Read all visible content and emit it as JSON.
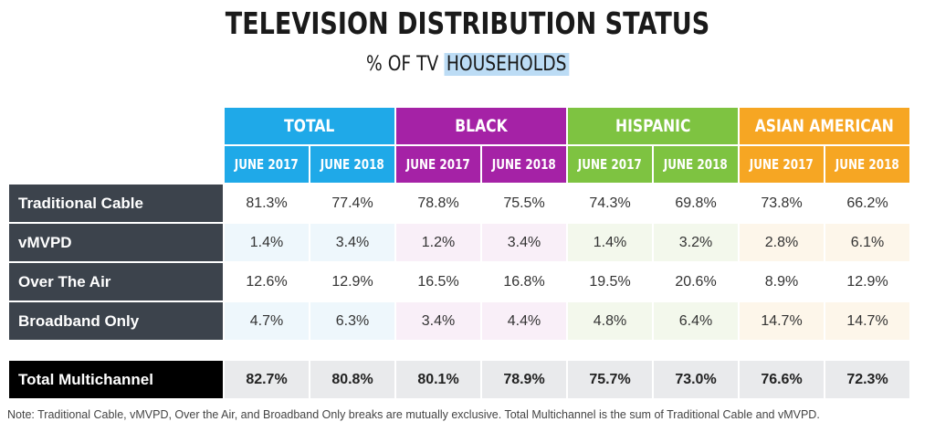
{
  "title": "TELEVISION DISTRIBUTION STATUS",
  "subtitle_prefix": "% OF TV",
  "subtitle_highlight": "HOUSEHOLDS",
  "colors": {
    "total": "#1fa9e8",
    "black": "#a522a6",
    "hispanic": "#7ec341",
    "asian_american": "#f6a623",
    "row_label_bg": "#3c434c",
    "total_label_bg": "#000000"
  },
  "chart_data": {
    "type": "table",
    "groups": [
      "TOTAL",
      "BLACK",
      "HISPANIC",
      "ASIAN AMERICAN"
    ],
    "periods": [
      "JUNE 2017",
      "JUNE 2018"
    ],
    "rows": [
      {
        "label": "Traditional Cable",
        "values": [
          "81.3%",
          "77.4%",
          "78.8%",
          "75.5%",
          "74.3%",
          "69.8%",
          "73.8%",
          "66.2%"
        ]
      },
      {
        "label": "vMVPD",
        "values": [
          "1.4%",
          "3.4%",
          "1.2%",
          "3.4%",
          "1.4%",
          "3.2%",
          "2.8%",
          "6.1%"
        ]
      },
      {
        "label": "Over The Air",
        "values": [
          "12.6%",
          "12.9%",
          "16.5%",
          "16.8%",
          "19.5%",
          "20.6%",
          "8.9%",
          "12.9%"
        ]
      },
      {
        "label": "Broadband Only",
        "values": [
          "4.7%",
          "6.3%",
          "3.4%",
          "4.4%",
          "4.8%",
          "6.4%",
          "14.7%",
          "14.7%"
        ]
      }
    ],
    "total_row": {
      "label": "Total Multichannel",
      "values": [
        "82.7%",
        "80.8%",
        "80.1%",
        "78.9%",
        "75.7%",
        "73.0%",
        "76.6%",
        "72.3%"
      ]
    }
  },
  "note": "Note:  Traditional Cable, vMVPD, Over the Air, and Broadband Only breaks are mutually exclusive.  Total Multichannel is the sum of Traditional Cable and vMVPD."
}
